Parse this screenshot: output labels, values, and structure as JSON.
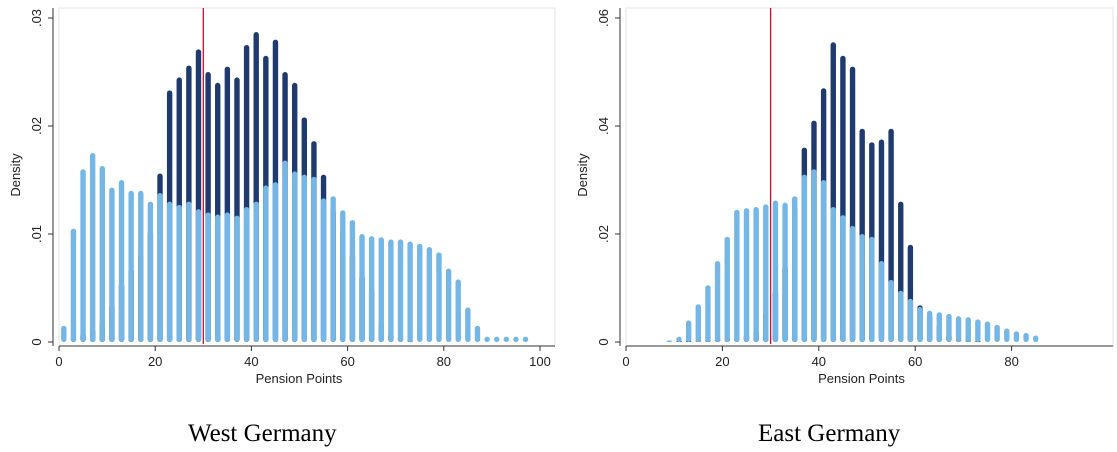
{
  "chart_data": [
    {
      "type": "bar",
      "panel": "West Germany",
      "xlabel": "Pension Points",
      "ylabel": "Density",
      "xlim": [
        0,
        100
      ],
      "ylim": [
        0,
        0.03
      ],
      "xticks": [
        "0",
        "20",
        "40",
        "60",
        "80",
        "100"
      ],
      "yticks": [
        ".03",
        ".02",
        ".01",
        "0"
      ],
      "ytick_values": [
        0.03,
        0.02,
        0.01,
        0
      ],
      "vline": 30,
      "series": [
        {
          "color": "#1f3a6e",
          "x": [
            3,
            5,
            7,
            9,
            11,
            13,
            15,
            17,
            19,
            21,
            23,
            25,
            27,
            29,
            31,
            33,
            35,
            37,
            39,
            41,
            43,
            45,
            47,
            49,
            51,
            53,
            55,
            57,
            59,
            61,
            63,
            65,
            67,
            69,
            71,
            73
          ],
          "values": [
            0.0005,
            0.0008,
            0.0012,
            0.0018,
            0.0035,
            0.0055,
            0.0068,
            0.0082,
            0.0103,
            0.0156,
            0.0233,
            0.0245,
            0.0256,
            0.0271,
            0.025,
            0.024,
            0.0255,
            0.0245,
            0.0275,
            0.0287,
            0.0265,
            0.028,
            0.025,
            0.024,
            0.0208,
            0.0186,
            0.0155,
            0.0122,
            0.0103,
            0.0082,
            0.0062,
            0.005,
            0.0018,
            0.0008,
            0.0005,
            0.0002
          ]
        },
        {
          "color": "#74b7e6",
          "x": [
            1,
            3,
            5,
            7,
            9,
            11,
            13,
            15,
            17,
            19,
            21,
            23,
            25,
            27,
            29,
            31,
            33,
            35,
            37,
            39,
            41,
            43,
            45,
            47,
            49,
            51,
            53,
            55,
            57,
            59,
            61,
            63,
            65,
            67,
            69,
            71,
            73,
            75,
            77,
            79,
            81,
            83,
            85,
            87,
            89,
            91,
            93,
            95,
            97
          ],
          "values": [
            0.0015,
            0.0105,
            0.016,
            0.0175,
            0.0163,
            0.0143,
            0.015,
            0.014,
            0.014,
            0.013,
            0.0138,
            0.013,
            0.0127,
            0.013,
            0.0123,
            0.012,
            0.0118,
            0.012,
            0.0117,
            0.0125,
            0.013,
            0.0145,
            0.0148,
            0.0168,
            0.0158,
            0.0155,
            0.0153,
            0.0133,
            0.0135,
            0.0122,
            0.0113,
            0.01,
            0.0098,
            0.0097,
            0.0095,
            0.0095,
            0.0093,
            0.0091,
            0.0088,
            0.0083,
            0.0068,
            0.0058,
            0.0032,
            0.0015,
            0.0005,
            0.0005,
            0.0005,
            0.0005,
            0.0005
          ]
        }
      ]
    },
    {
      "type": "bar",
      "panel": "East Germany",
      "xlabel": "Pension Points",
      "ylabel": "Density",
      "xlim": [
        0,
        100
      ],
      "ylim": [
        0,
        0.06
      ],
      "xticks": [
        "0",
        "20",
        "40",
        "60",
        "80"
      ],
      "yticks": [
        ".06",
        ".04",
        ".02",
        "0"
      ],
      "ytick_values": [
        0.06,
        0.04,
        0.02,
        0
      ],
      "vline": 30,
      "series": [
        {
          "color": "#1f3a6e",
          "x": [
            11,
            13,
            15,
            17,
            19,
            21,
            23,
            25,
            27,
            29,
            31,
            33,
            35,
            37,
            39,
            41,
            43,
            45,
            47,
            49,
            51,
            53,
            55,
            57,
            59,
            61,
            63,
            65,
            67,
            69,
            71,
            73
          ],
          "values": [
            0.0002,
            0.0003,
            0.0004,
            0.0005,
            0.0007,
            0.0008,
            0.001,
            0.0015,
            0.0022,
            0.0055,
            0.0095,
            0.014,
            0.025,
            0.036,
            0.041,
            0.047,
            0.0555,
            0.053,
            0.051,
            0.0395,
            0.037,
            0.0375,
            0.0395,
            0.026,
            0.018,
            0.0068,
            0.005,
            0.0032,
            0.0015,
            0.0007,
            0.0004,
            0.0002
          ]
        },
        {
          "color": "#74b7e6",
          "x": [
            9,
            11,
            13,
            15,
            17,
            19,
            21,
            23,
            25,
            27,
            29,
            31,
            33,
            35,
            37,
            39,
            41,
            43,
            45,
            47,
            49,
            51,
            53,
            55,
            57,
            59,
            61,
            63,
            65,
            67,
            69,
            71,
            73,
            75,
            77,
            79,
            81,
            83,
            85
          ],
          "values": [
            0.0003,
            0.001,
            0.004,
            0.007,
            0.0105,
            0.015,
            0.0195,
            0.0245,
            0.0248,
            0.025,
            0.0255,
            0.0262,
            0.0258,
            0.027,
            0.031,
            0.032,
            0.03,
            0.025,
            0.0235,
            0.0215,
            0.02,
            0.0195,
            0.015,
            0.0115,
            0.0095,
            0.008,
            0.0065,
            0.0058,
            0.0055,
            0.0052,
            0.0048,
            0.0046,
            0.0042,
            0.0038,
            0.0032,
            0.0025,
            0.002,
            0.0017,
            0.0012
          ]
        }
      ]
    }
  ],
  "captions": [
    "West Germany",
    "East Germany"
  ]
}
